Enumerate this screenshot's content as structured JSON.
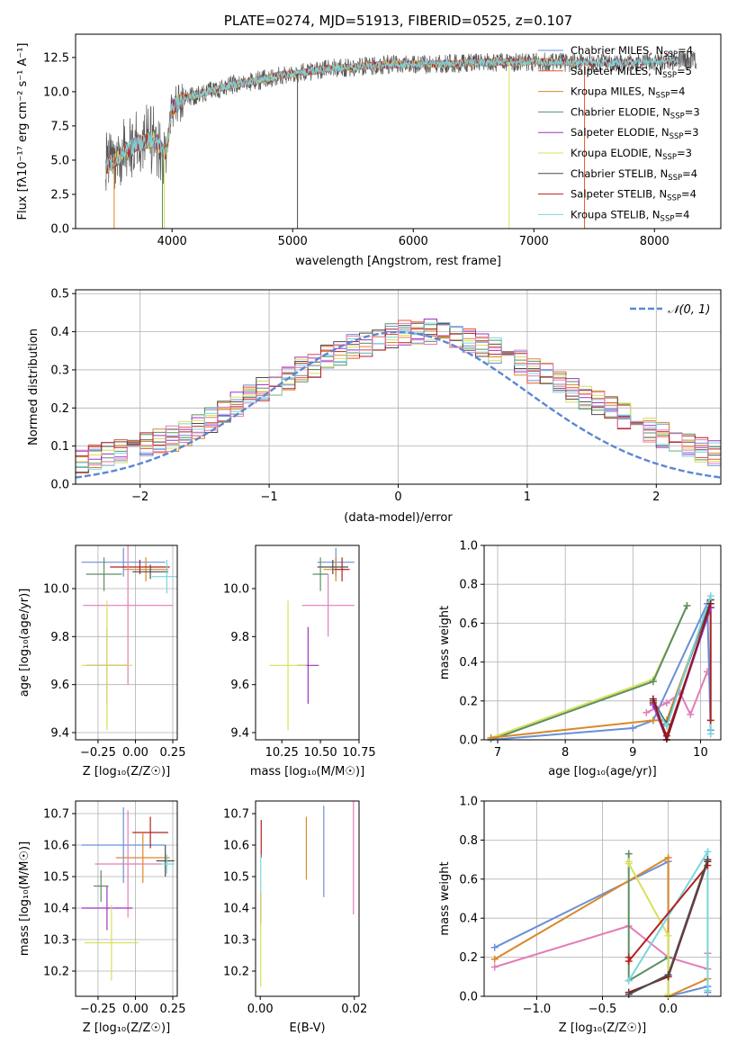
{
  "chart_data": [
    {
      "id": "spectrum",
      "type": "line",
      "title": "PLATE=0274, MJD=51913, FIBERID=0525, z=0.107",
      "xlabel": "wavelength [Angstrom, rest frame]",
      "ylabel": "Flux [fλ10⁻¹⁷ erg cm⁻² s⁻¹ A⁻¹]",
      "xlim": [
        3200,
        8550
      ],
      "ylim": [
        0,
        14.2
      ],
      "xticks": [
        "4000",
        "5000",
        "6000",
        "7000",
        "8000"
      ],
      "yticks": [
        "0.0",
        "2.5",
        "5.0",
        "7.5",
        "10.0",
        "12.5"
      ],
      "continuum": {
        "x": [
          3450,
          3550,
          3700,
          3850,
          3950,
          4000,
          4100,
          4300,
          4500,
          4700,
          4900,
          5100,
          5300,
          5500,
          5800,
          6100,
          6500,
          7000,
          7500,
          8000,
          8300
        ],
        "y": [
          4.5,
          5.2,
          6.2,
          6.5,
          5.5,
          8.8,
          9.5,
          10.0,
          10.5,
          10.8,
          11.2,
          11.4,
          11.7,
          11.8,
          12.0,
          12.0,
          12.1,
          12.2,
          12.1,
          12.2,
          12.3
        ]
      },
      "legend_location": "upper right",
      "series": [
        {
          "name": "Chabrier MILES, N",
          "sub": "SSP",
          "suffix": "=4",
          "color": "#6a8fd6"
        },
        {
          "name": "Salpeter MILES, N",
          "sub": "SSP",
          "suffix": "=5",
          "color": "#e8562a"
        },
        {
          "name": "Kroupa MILES, N",
          "sub": "SSP",
          "suffix": "=4",
          "color": "#d9892a"
        },
        {
          "name": "Chabrier ELODIE, N",
          "sub": "SSP",
          "suffix": "=3",
          "color": "#5b8f62"
        },
        {
          "name": "Salpeter ELODIE, N",
          "sub": "SSP",
          "suffix": "=3",
          "color": "#9c33c4"
        },
        {
          "name": "Kroupa ELODIE, N",
          "sub": "SSP",
          "suffix": "=3",
          "color": "#d8e05a"
        },
        {
          "name": "Chabrier STELIB, N",
          "sub": "SSP",
          "suffix": "=4",
          "color": "#4d4d4d"
        },
        {
          "name": "Salpeter STELIB, N",
          "sub": "SSP",
          "suffix": "=4",
          "color": "#b22020"
        },
        {
          "name": "Kroupa STELIB, N",
          "sub": "SSP",
          "suffix": "=4",
          "color": "#79d6dc"
        }
      ]
    },
    {
      "id": "residuals",
      "type": "histogram",
      "xlabel": "(data-model)/error",
      "ylabel": "Normed distribution",
      "xlim": [
        -2.5,
        2.5
      ],
      "ylim": [
        0,
        0.51
      ],
      "xticks": [
        "−2",
        "−1",
        "0",
        "1",
        "2"
      ],
      "yticks": [
        "0.0",
        "0.1",
        "0.2",
        "0.3",
        "0.4",
        "0.5"
      ],
      "bin_width": 0.1,
      "gaussian_label": "𝒩(0, 1)",
      "gaussian_color": "#5b87d4",
      "base_shape": [
        0.04,
        0.04,
        0.05,
        0.05,
        0.05,
        0.06,
        0.07,
        0.08,
        0.09,
        0.1,
        0.1,
        0.11,
        0.12,
        0.13,
        0.15,
        0.17,
        0.19,
        0.21,
        0.23,
        0.25,
        0.26,
        0.28,
        0.3,
        0.31,
        0.33,
        0.34,
        0.36,
        0.37,
        0.38,
        0.39,
        0.4,
        0.4,
        0.4,
        0.39,
        0.39,
        0.38,
        0.37,
        0.35,
        0.34,
        0.32,
        0.3,
        0.29,
        0.27,
        0.25,
        0.23,
        0.21,
        0.2,
        0.18,
        0.16,
        0.14,
        0.13,
        0.11,
        0.1,
        0.09,
        0.08,
        0.07,
        0.06,
        0.05,
        0.05,
        0.04
      ]
    },
    {
      "id": "age_vs_z",
      "type": "scatter",
      "xlabel": "Z [log₁₀(Z/Z☉)]",
      "ylabel": "age  [log₁₀(age/yr)]",
      "xlim": [
        -0.4,
        0.28
      ],
      "ylim": [
        9.37,
        10.18
      ],
      "xticks": [
        {
          "v": -0.25,
          "t": "−0.25"
        },
        {
          "v": 0.0,
          "t": "0.00"
        },
        {
          "v": 0.25,
          "t": "0.25"
        }
      ],
      "yticks": [
        {
          "v": 9.4,
          "t": "9.4"
        },
        {
          "v": 9.6,
          "t": "9.6"
        },
        {
          "v": 9.8,
          "t": "9.8"
        },
        {
          "v": 10.0,
          "t": "10.0"
        }
      ],
      "points": [
        {
          "x": -0.08,
          "y": 10.11,
          "xerr": 0.28,
          "yerr": 0.06,
          "c": "#6a8fd6"
        },
        {
          "x": 0.07,
          "y": 10.08,
          "xerr": 0.15,
          "yerr": 0.05,
          "c": "#d9892a"
        },
        {
          "x": 0.03,
          "y": 10.09,
          "xerr": 0.2,
          "yerr": 0.03,
          "c": "#b22020"
        },
        {
          "x": 0.1,
          "y": 10.07,
          "xerr": 0.12,
          "yerr": 0.03,
          "c": "#4d4d4d"
        },
        {
          "x": 0.21,
          "y": 10.05,
          "xerr": 0.1,
          "yerr": 0.07,
          "c": "#79d6dc"
        },
        {
          "x": -0.21,
          "y": 10.06,
          "xerr": 0.12,
          "yerr": 0.07,
          "c": "#5b8f62"
        },
        {
          "x": -0.05,
          "y": 9.93,
          "xerr": 0.3,
          "yerr": 0.33,
          "c": "#e27db7"
        },
        {
          "x": -0.19,
          "y": 9.68,
          "xerr": 0.14,
          "yerr": 0.16,
          "c": "#9c33c4"
        },
        {
          "x": -0.19,
          "y": 9.68,
          "xerr": 0.17,
          "yerr": 0.27,
          "c": "#d8e05a"
        }
      ]
    },
    {
      "id": "age_vs_mass",
      "type": "scatter",
      "xlabel": "mass [log₁₀(M/M☉)]",
      "ylabel": "",
      "xlim": [
        10.08,
        10.75
      ],
      "ylim": [
        9.37,
        10.18
      ],
      "xticks": [
        {
          "v": 10.25,
          "t": "10.25"
        },
        {
          "v": 10.5,
          "t": "10.50"
        },
        {
          "v": 10.75,
          "t": "10.75"
        }
      ],
      "yticks": [
        {
          "v": 9.4,
          "t": "9.4"
        },
        {
          "v": 9.6,
          "t": "9.6"
        },
        {
          "v": 9.8,
          "t": "9.8"
        },
        {
          "v": 10.0,
          "t": "10.0"
        }
      ],
      "points": [
        {
          "x": 10.6,
          "y": 10.11,
          "xerr": 0.12,
          "yerr": 0.06,
          "c": "#6a8fd6"
        },
        {
          "x": 10.6,
          "y": 10.08,
          "xerr": 0.08,
          "yerr": 0.05,
          "c": "#d9892a"
        },
        {
          "x": 10.64,
          "y": 10.08,
          "xerr": 0.05,
          "yerr": 0.05,
          "c": "#b22020"
        },
        {
          "x": 10.58,
          "y": 10.09,
          "xerr": 0.1,
          "yerr": 0.03,
          "c": "#4d4d4d"
        },
        {
          "x": 10.5,
          "y": 10.06,
          "xerr": 0.05,
          "yerr": 0.07,
          "c": "#5b8f62"
        },
        {
          "x": 10.55,
          "y": 9.93,
          "xerr": 0.17,
          "yerr": 0.13,
          "c": "#e27db7"
        },
        {
          "x": 10.42,
          "y": 9.68,
          "xerr": 0.07,
          "yerr": 0.16,
          "c": "#9c33c4"
        },
        {
          "x": 10.29,
          "y": 9.68,
          "xerr": 0.12,
          "yerr": 0.27,
          "c": "#d8e05a"
        }
      ]
    },
    {
      "id": "mass_weight_vs_age",
      "type": "line",
      "xlabel": "age  [log₁₀(age/yr)]",
      "ylabel": "mass weight",
      "xlim": [
        6.8,
        10.3
      ],
      "ylim": [
        0,
        1.0
      ],
      "xticks": [
        {
          "v": 7,
          "t": "7"
        },
        {
          "v": 8,
          "t": "8"
        },
        {
          "v": 9,
          "t": "9"
        },
        {
          "v": 10,
          "t": "10"
        }
      ],
      "yticks": [
        {
          "v": 0.0,
          "t": "0.0"
        },
        {
          "v": 0.2,
          "t": "0.2"
        },
        {
          "v": 0.4,
          "t": "0.4"
        },
        {
          "v": 0.6,
          "t": "0.6"
        },
        {
          "v": 0.8,
          "t": "0.8"
        },
        {
          "v": 1.0,
          "t": "1.0"
        }
      ],
      "series": [
        {
          "c": "#d8e05a",
          "x": [
            6.9,
            9.3,
            9.8
          ],
          "y": [
            0.01,
            0.31,
            0.69
          ]
        },
        {
          "c": "#5b8f62",
          "x": [
            6.9,
            9.3,
            9.8
          ],
          "y": [
            0.0,
            0.3,
            0.69
          ]
        },
        {
          "c": "#6a8fd6",
          "x": [
            6.9,
            9.0,
            9.3,
            10.1,
            10.15
          ],
          "y": [
            0.0,
            0.06,
            0.1,
            0.7,
            0.05
          ]
        },
        {
          "c": "#d9892a",
          "x": [
            6.9,
            9.3,
            9.5,
            10.15
          ],
          "y": [
            0.01,
            0.1,
            0.1,
            0.72
          ]
        },
        {
          "c": "#e27db7",
          "x": [
            9.2,
            9.5,
            9.7,
            9.85,
            10.1
          ],
          "y": [
            0.14,
            0.19,
            0.24,
            0.13,
            0.35
          ]
        },
        {
          "c": "#4d4d4d",
          "x": [
            9.3,
            9.5,
            10.15
          ],
          "y": [
            0.2,
            0.08,
            0.72
          ]
        },
        {
          "c": "#79d6dc",
          "x": [
            9.3,
            9.5,
            10.15,
            10.15
          ],
          "y": [
            0.19,
            0.07,
            0.74,
            0.03
          ]
        },
        {
          "c": "#b22020",
          "x": [
            9.3,
            9.5,
            10.15,
            10.15
          ],
          "y": [
            0.19,
            0.02,
            0.68,
            0.1
          ]
        },
        {
          "c": "#9c33c4",
          "x": [
            9.3,
            9.5,
            10.15
          ],
          "y": [
            0.18,
            0.0,
            0.68
          ]
        },
        {
          "c": "#8b1a1a",
          "x": [
            9.3,
            9.5,
            10.15
          ],
          "y": [
            0.21,
            0.0,
            0.7
          ]
        }
      ]
    },
    {
      "id": "mass_vs_z",
      "type": "scatter",
      "xlabel": "Z [log₁₀(Z/Z☉)]",
      "ylabel": "mass [log₁₀(M/M☉)]",
      "xlim": [
        -0.4,
        0.28
      ],
      "ylim": [
        10.12,
        10.74
      ],
      "xticks": [
        {
          "v": -0.25,
          "t": "−0.25"
        },
        {
          "v": 0.0,
          "t": "0.00"
        },
        {
          "v": 0.25,
          "t": "0.25"
        }
      ],
      "yticks": [
        {
          "v": 10.2,
          "t": "10.2"
        },
        {
          "v": 10.3,
          "t": "10.3"
        },
        {
          "v": 10.4,
          "t": "10.4"
        },
        {
          "v": 10.5,
          "t": "10.5"
        },
        {
          "v": 10.6,
          "t": "10.6"
        },
        {
          "v": 10.7,
          "t": "10.7"
        }
      ],
      "points": [
        {
          "x": -0.08,
          "y": 10.6,
          "xerr": 0.28,
          "yerr": 0.12,
          "c": "#6a8fd6"
        },
        {
          "x": 0.1,
          "y": 10.64,
          "xerr": 0.12,
          "yerr": 0.05,
          "c": "#b22020"
        },
        {
          "x": 0.05,
          "y": 10.56,
          "xerr": 0.18,
          "yerr": 0.08,
          "c": "#d9892a"
        },
        {
          "x": 0.2,
          "y": 10.55,
          "xerr": 0.06,
          "yerr": 0.05,
          "c": "#4d4d4d"
        },
        {
          "x": 0.21,
          "y": 10.54,
          "xerr": 0.05,
          "yerr": 0.03,
          "c": "#79d6dc"
        },
        {
          "x": -0.05,
          "y": 10.54,
          "xerr": 0.22,
          "yerr": 0.17,
          "c": "#e27db7"
        },
        {
          "x": -0.23,
          "y": 10.47,
          "xerr": 0.05,
          "yerr": 0.05,
          "c": "#5b8f62"
        },
        {
          "x": -0.19,
          "y": 10.4,
          "xerr": 0.17,
          "yerr": 0.07,
          "c": "#9c33c4"
        },
        {
          "x": -0.16,
          "y": 10.29,
          "xerr": 0.18,
          "yerr": 0.12,
          "c": "#d8e05a"
        }
      ]
    },
    {
      "id": "mass_vs_ebv",
      "type": "scatter",
      "xlabel": "E(B-V)",
      "ylabel": "",
      "xlim": [
        -0.001,
        0.021
      ],
      "ylim": [
        10.12,
        10.74
      ],
      "xticks": [
        {
          "v": 0.0,
          "t": "0.00"
        },
        {
          "v": 0.02,
          "t": "0.02"
        }
      ],
      "yticks": [
        {
          "v": 10.2,
          "t": "10.2"
        },
        {
          "v": 10.3,
          "t": "10.3"
        },
        {
          "v": 10.4,
          "t": "10.4"
        },
        {
          "v": 10.5,
          "t": "10.5"
        },
        {
          "v": 10.6,
          "t": "10.6"
        },
        {
          "v": 10.7,
          "t": "10.7"
        }
      ],
      "points": [
        {
          "x": 0.0135,
          "y": 10.58,
          "xerr": 0,
          "yerr": 0.145,
          "c": "#6a8fd6"
        },
        {
          "x": 0.0098,
          "y": 10.59,
          "xerr": 0,
          "yerr": 0.1,
          "c": "#d9892a"
        },
        {
          "x": 0.0198,
          "y": 10.56,
          "xerr": 0,
          "yerr": 0.18,
          "c": "#e27db7"
        },
        {
          "x": 0.0002,
          "y": 10.62,
          "xerr": 0,
          "yerr": 0.06,
          "c": "#b22020"
        },
        {
          "x": 0.0001,
          "y": 10.5,
          "xerr": 0,
          "yerr": 0.07,
          "c": "#79d6dc"
        },
        {
          "x": 0.0001,
          "y": 10.4,
          "xerr": 0,
          "yerr": 0.05,
          "c": "#9c33c4"
        },
        {
          "x": 0.0001,
          "y": 10.3,
          "xerr": 0,
          "yerr": 0.15,
          "c": "#d8e05a"
        }
      ]
    },
    {
      "id": "mass_weight_vs_z",
      "type": "line",
      "xlabel": "Z [log₁₀(Z/Z☉)]",
      "ylabel": "mass weight",
      "xlim": [
        -1.4,
        0.4
      ],
      "ylim": [
        0,
        1.0
      ],
      "xticks": [
        {
          "v": -1.0,
          "t": "−1.0"
        },
        {
          "v": -0.5,
          "t": "−0.5"
        },
        {
          "v": 0.0,
          "t": "0.0"
        }
      ],
      "yticks": [
        {
          "v": 0.0,
          "t": "0.0"
        },
        {
          "v": 0.2,
          "t": "0.2"
        },
        {
          "v": 0.4,
          "t": "0.4"
        },
        {
          "v": 0.6,
          "t": "0.6"
        },
        {
          "v": 0.8,
          "t": "0.8"
        },
        {
          "v": 1.0,
          "t": "1.0"
        }
      ],
      "series": [
        {
          "c": "#6a8fd6",
          "x": [
            -1.32,
            0.0,
            0.0,
            0.3,
            0.3
          ],
          "y": [
            0.25,
            0.69,
            0.0,
            0.05,
            0.02
          ]
        },
        {
          "c": "#d9892a",
          "x": [
            -1.32,
            0.0,
            0.0,
            0.3
          ],
          "y": [
            0.19,
            0.71,
            0.0,
            0.09
          ]
        },
        {
          "c": "#e27db7",
          "x": [
            -1.32,
            -0.3,
            0.0,
            0.3,
            0.3
          ],
          "y": [
            0.15,
            0.36,
            0.2,
            0.14,
            0.22
          ]
        },
        {
          "c": "#5b8f62",
          "x": [
            -0.3,
            -0.3,
            0.0,
            0.0
          ],
          "y": [
            0.73,
            0.08,
            0.2,
            0.1
          ]
        },
        {
          "c": "#d8e05a",
          "x": [
            -0.3,
            -0.3,
            0.0,
            0.0
          ],
          "y": [
            0.69,
            0.68,
            0.31,
            0.01
          ]
        },
        {
          "c": "#79d6dc",
          "x": [
            -0.3,
            0.3,
            0.3
          ],
          "y": [
            0.08,
            0.74,
            0.03
          ]
        },
        {
          "c": "#b22020",
          "x": [
            -0.3,
            -0.3,
            0.3
          ],
          "y": [
            0.2,
            0.18,
            0.67
          ]
        },
        {
          "c": "#8b1a1a",
          "x": [
            -0.3,
            0.0,
            0.3
          ],
          "y": [
            0.02,
            0.1,
            0.69
          ]
        },
        {
          "c": "#4d4d4d",
          "x": [
            -0.3,
            0.0,
            0.3
          ],
          "y": [
            0.01,
            0.11,
            0.7
          ]
        }
      ]
    }
  ]
}
